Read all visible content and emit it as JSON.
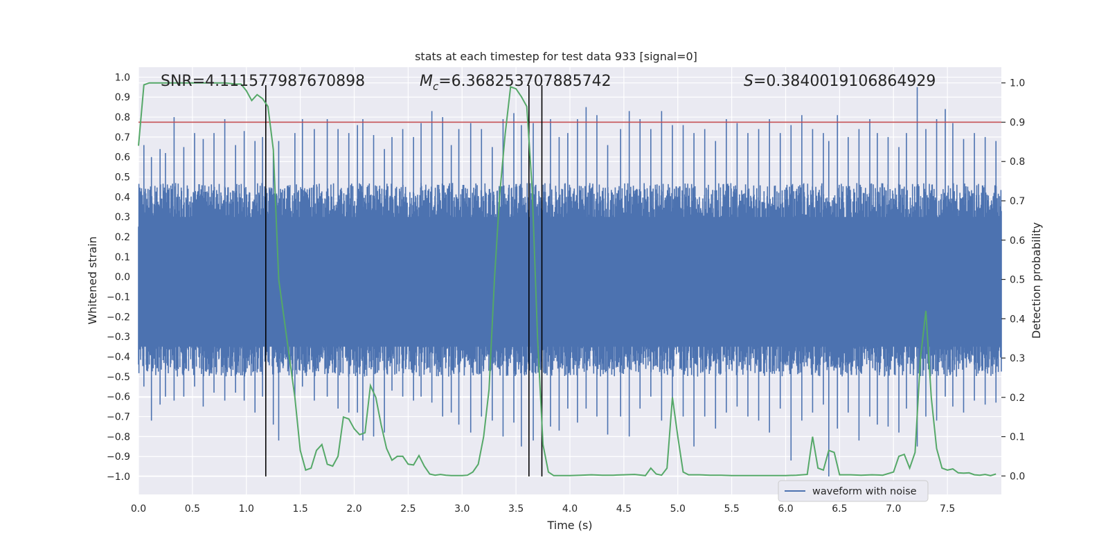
{
  "chart_data": {
    "type": "line",
    "title": "stats at each timestep for test data 933 [signal=0]",
    "xlabel": "Time (s)",
    "ylabel_left": "Whitened strain",
    "ylabel_right": "Detection probability",
    "xlim": [
      0.0,
      8.0
    ],
    "ylim_left": [
      -1.09,
      1.05
    ],
    "ylim_right": [
      -0.047,
      1.04
    ],
    "x_ticks": [
      "0.0",
      "0.5",
      "1.0",
      "1.5",
      "2.0",
      "2.5",
      "3.0",
      "3.5",
      "4.0",
      "4.5",
      "5.0",
      "5.5",
      "6.0",
      "6.5",
      "7.0",
      "7.5"
    ],
    "y_left_ticks": [
      "1.0",
      "0.9",
      "0.8",
      "0.7",
      "0.6",
      "0.5",
      "0.4",
      "0.3",
      "0.2",
      "0.1",
      "0.0",
      "−0.1",
      "−0.2",
      "−0.3",
      "−0.4",
      "−0.5",
      "−0.6",
      "−0.7",
      "−0.8",
      "−0.9",
      "−1.0"
    ],
    "y_right_ticks": [
      "1.0",
      "0.9",
      "0.8",
      "0.7",
      "0.6",
      "0.5",
      "0.4",
      "0.3",
      "0.2",
      "0.1",
      "0.0"
    ],
    "grid": true,
    "legend": {
      "position": "lower-right",
      "entries": [
        "waveform with noise"
      ]
    },
    "annotations": {
      "snr": "SNR=4.111577987670898",
      "mc_symbol": "M",
      "mc_subscript": "c",
      "mc_value": "=6.368253707885742",
      "s_symbol": "S",
      "s_value": "=0.3840019106864929"
    },
    "threshold_line": {
      "value": 0.9,
      "axis": "right",
      "color": "#c44e52"
    },
    "vertical_lines": [
      1.18,
      3.62,
      3.74
    ],
    "waveform": {
      "name": "waveform with noise",
      "color": "#4c72b0",
      "note_bulk": "dense noise band roughly between -0.42 and 0.37 strain",
      "spikes": [
        [
          0.05,
          0.66,
          -0.55
        ],
        [
          0.12,
          0.6,
          -0.72
        ],
        [
          0.2,
          0.64,
          -0.64
        ],
        [
          0.25,
          0.62,
          -0.6
        ],
        [
          0.33,
          0.8,
          -0.62
        ],
        [
          0.42,
          0.65,
          -0.6
        ],
        [
          0.52,
          0.72,
          -0.55
        ],
        [
          0.6,
          0.69,
          -0.65
        ],
        [
          0.7,
          0.72,
          -0.58
        ],
        [
          0.8,
          0.79,
          -0.62
        ],
        [
          0.9,
          0.66,
          -0.58
        ],
        [
          0.98,
          0.73,
          -0.62
        ],
        [
          1.08,
          0.68,
          -0.68
        ],
        [
          1.15,
          0.7,
          -0.6
        ],
        [
          1.25,
          0.62,
          -0.74
        ],
        [
          1.3,
          0.68,
          -0.82
        ],
        [
          1.45,
          0.72,
          -0.6
        ],
        [
          1.52,
          0.79,
          -0.55
        ],
        [
          1.63,
          0.74,
          -0.62
        ],
        [
          1.75,
          0.79,
          -0.6
        ],
        [
          1.85,
          0.74,
          -0.66
        ],
        [
          1.95,
          0.72,
          -0.68
        ],
        [
          2.03,
          0.76,
          -0.68
        ],
        [
          2.08,
          0.79,
          -0.82
        ],
        [
          2.18,
          0.71,
          -0.8
        ],
        [
          2.28,
          0.64,
          -0.78
        ],
        [
          2.35,
          0.7,
          -0.57
        ],
        [
          2.45,
          0.74,
          -0.6
        ],
        [
          2.55,
          0.7,
          -0.62
        ],
        [
          2.62,
          0.77,
          -0.6
        ],
        [
          2.72,
          0.83,
          -0.63
        ],
        [
          2.82,
          0.8,
          -0.7
        ],
        [
          2.9,
          0.66,
          -0.68
        ],
        [
          2.97,
          0.74,
          -0.74
        ],
        [
          3.08,
          0.77,
          -0.78
        ],
        [
          3.18,
          0.74,
          -0.7
        ],
        [
          3.28,
          0.65,
          -0.72
        ],
        [
          3.38,
          0.79,
          -0.8
        ],
        [
          3.48,
          0.82,
          -0.73
        ],
        [
          3.55,
          0.76,
          -0.85
        ],
        [
          3.66,
          0.77,
          -0.82
        ],
        [
          3.82,
          0.79,
          -0.75
        ],
        [
          3.9,
          0.7,
          -0.77
        ],
        [
          3.98,
          0.72,
          -0.66
        ],
        [
          4.07,
          0.79,
          -0.73
        ],
        [
          4.15,
          0.85,
          -0.66
        ],
        [
          4.25,
          0.81,
          -0.7
        ],
        [
          4.35,
          0.66,
          -0.79
        ],
        [
          4.47,
          0.74,
          -0.7
        ],
        [
          4.55,
          0.83,
          -0.8
        ],
        [
          4.65,
          0.79,
          -0.66
        ],
        [
          4.75,
          0.74,
          -0.6
        ],
        [
          4.85,
          0.83,
          -0.72
        ],
        [
          4.95,
          0.76,
          -0.64
        ],
        [
          5.05,
          0.76,
          -0.7
        ],
        [
          5.15,
          0.72,
          -0.85
        ],
        [
          5.25,
          0.74,
          -0.7
        ],
        [
          5.35,
          0.68,
          -0.76
        ],
        [
          5.45,
          0.79,
          -0.68
        ],
        [
          5.55,
          0.77,
          -0.65
        ],
        [
          5.65,
          0.72,
          -0.7
        ],
        [
          5.75,
          0.74,
          -0.72
        ],
        [
          5.85,
          0.79,
          -0.78
        ],
        [
          5.95,
          0.72,
          -0.66
        ],
        [
          6.05,
          0.76,
          -0.92
        ],
        [
          6.15,
          0.81,
          -0.72
        ],
        [
          6.25,
          0.74,
          -0.68
        ],
        [
          6.35,
          0.72,
          -0.64
        ],
        [
          6.4,
          0.68,
          -1.0
        ],
        [
          6.48,
          0.81,
          -0.76
        ],
        [
          6.58,
          0.7,
          -0.68
        ],
        [
          6.68,
          0.74,
          -0.82
        ],
        [
          6.78,
          0.79,
          -0.7
        ],
        [
          6.85,
          0.72,
          -0.74
        ],
        [
          6.95,
          0.7,
          -0.75
        ],
        [
          7.05,
          0.65,
          -0.78
        ],
        [
          7.12,
          0.72,
          -0.66
        ],
        [
          7.22,
          0.95,
          -0.85
        ],
        [
          7.3,
          0.74,
          -0.7
        ],
        [
          7.4,
          0.79,
          -0.72
        ],
        [
          7.48,
          0.84,
          -0.6
        ],
        [
          7.55,
          0.77,
          -0.65
        ],
        [
          7.65,
          0.69,
          -0.68
        ],
        [
          7.75,
          0.72,
          -0.62
        ],
        [
          7.85,
          0.7,
          -0.64
        ],
        [
          7.95,
          0.68,
          -0.63
        ]
      ]
    },
    "detection_probability": {
      "color": "#55a868",
      "axis": "right",
      "points": [
        [
          0.0,
          0.84
        ],
        [
          0.05,
          0.995
        ],
        [
          0.1,
          1.0
        ],
        [
          0.2,
          1.0
        ],
        [
          0.3,
          1.0
        ],
        [
          0.4,
          1.0
        ],
        [
          0.5,
          1.0
        ],
        [
          0.6,
          1.0
        ],
        [
          0.7,
          1.0
        ],
        [
          0.8,
          1.0
        ],
        [
          0.9,
          0.997
        ],
        [
          0.95,
          0.997
        ],
        [
          1.0,
          0.98
        ],
        [
          1.05,
          0.955
        ],
        [
          1.1,
          0.97
        ],
        [
          1.15,
          0.96
        ],
        [
          1.2,
          0.94
        ],
        [
          1.25,
          0.83
        ],
        [
          1.3,
          0.5
        ],
        [
          1.35,
          0.4
        ],
        [
          1.4,
          0.3
        ],
        [
          1.45,
          0.2
        ],
        [
          1.5,
          0.065
        ],
        [
          1.55,
          0.015
        ],
        [
          1.6,
          0.02
        ],
        [
          1.65,
          0.065
        ],
        [
          1.7,
          0.08
        ],
        [
          1.75,
          0.03
        ],
        [
          1.8,
          0.025
        ],
        [
          1.85,
          0.05
        ],
        [
          1.9,
          0.15
        ],
        [
          1.95,
          0.145
        ],
        [
          2.0,
          0.12
        ],
        [
          2.05,
          0.105
        ],
        [
          2.1,
          0.11
        ],
        [
          2.15,
          0.23
        ],
        [
          2.2,
          0.2
        ],
        [
          2.25,
          0.13
        ],
        [
          2.3,
          0.07
        ],
        [
          2.35,
          0.04
        ],
        [
          2.4,
          0.05
        ],
        [
          2.45,
          0.05
        ],
        [
          2.5,
          0.03
        ],
        [
          2.55,
          0.028
        ],
        [
          2.6,
          0.052
        ],
        [
          2.65,
          0.025
        ],
        [
          2.7,
          0.005
        ],
        [
          2.75,
          0.002
        ],
        [
          2.8,
          0.004
        ],
        [
          2.85,
          0.002
        ],
        [
          2.9,
          0.001
        ],
        [
          2.95,
          0.001
        ],
        [
          3.0,
          0.001
        ],
        [
          3.05,
          0.002
        ],
        [
          3.1,
          0.01
        ],
        [
          3.15,
          0.03
        ],
        [
          3.2,
          0.1
        ],
        [
          3.25,
          0.22
        ],
        [
          3.3,
          0.5
        ],
        [
          3.35,
          0.72
        ],
        [
          3.4,
          0.87
        ],
        [
          3.45,
          0.99
        ],
        [
          3.5,
          0.985
        ],
        [
          3.55,
          0.965
        ],
        [
          3.6,
          0.94
        ],
        [
          3.65,
          0.73
        ],
        [
          3.7,
          0.35
        ],
        [
          3.75,
          0.08
        ],
        [
          3.8,
          0.01
        ],
        [
          3.85,
          0.001
        ],
        [
          3.9,
          0.001
        ],
        [
          4.0,
          0.001
        ],
        [
          4.1,
          0.002
        ],
        [
          4.2,
          0.003
        ],
        [
          4.3,
          0.002
        ],
        [
          4.4,
          0.002
        ],
        [
          4.5,
          0.003
        ],
        [
          4.6,
          0.004
        ],
        [
          4.7,
          0.001
        ],
        [
          4.75,
          0.02
        ],
        [
          4.8,
          0.005
        ],
        [
          4.85,
          0.002
        ],
        [
          4.9,
          0.02
        ],
        [
          4.95,
          0.2
        ],
        [
          5.0,
          0.1
        ],
        [
          5.05,
          0.01
        ],
        [
          5.1,
          0.003
        ],
        [
          5.2,
          0.003
        ],
        [
          5.3,
          0.002
        ],
        [
          5.4,
          0.002
        ],
        [
          5.5,
          0.001
        ],
        [
          5.6,
          0.001
        ],
        [
          5.7,
          0.001
        ],
        [
          5.8,
          0.001
        ],
        [
          5.9,
          0.001
        ],
        [
          6.0,
          0.001
        ],
        [
          6.1,
          0.002
        ],
        [
          6.2,
          0.004
        ],
        [
          6.25,
          0.1
        ],
        [
          6.3,
          0.02
        ],
        [
          6.35,
          0.015
        ],
        [
          6.4,
          0.065
        ],
        [
          6.45,
          0.06
        ],
        [
          6.5,
          0.003
        ],
        [
          6.6,
          0.003
        ],
        [
          6.7,
          0.002
        ],
        [
          6.8,
          0.003
        ],
        [
          6.9,
          0.002
        ],
        [
          7.0,
          0.01
        ],
        [
          7.05,
          0.05
        ],
        [
          7.1,
          0.055
        ],
        [
          7.15,
          0.02
        ],
        [
          7.2,
          0.06
        ],
        [
          7.25,
          0.3
        ],
        [
          7.3,
          0.42
        ],
        [
          7.35,
          0.2
        ],
        [
          7.4,
          0.07
        ],
        [
          7.45,
          0.02
        ],
        [
          7.5,
          0.015
        ],
        [
          7.55,
          0.018
        ],
        [
          7.6,
          0.008
        ],
        [
          7.65,
          0.007
        ],
        [
          7.7,
          0.008
        ],
        [
          7.75,
          0.003
        ],
        [
          7.8,
          0.002
        ],
        [
          7.85,
          0.004
        ],
        [
          7.9,
          0.001
        ],
        [
          7.95,
          0.005
        ]
      ]
    }
  }
}
